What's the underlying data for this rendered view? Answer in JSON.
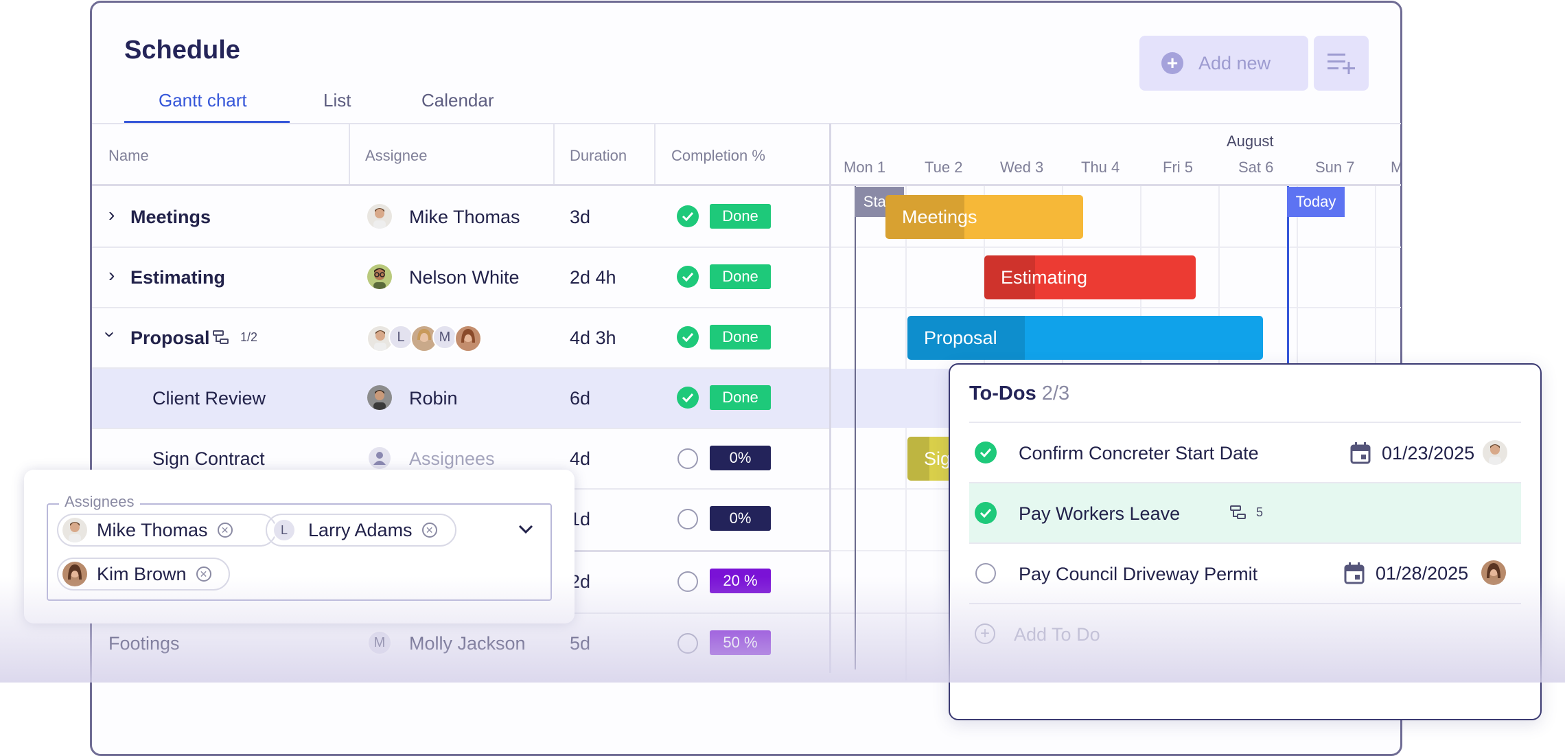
{
  "header": {
    "title": "Schedule",
    "tabs": [
      "Gantt chart",
      "List",
      "Calendar"
    ],
    "active_tab": "Gantt chart",
    "add_new_label": "Add new"
  },
  "table": {
    "columns": [
      "Name",
      "Assignee",
      "Duration",
      "Completion %"
    ],
    "rows": [
      {
        "name": "Meetings",
        "assignee": "Mike Thomas",
        "duration": "3d",
        "status": "Done"
      },
      {
        "name": "Estimating",
        "assignee": "Nelson White",
        "duration": "2d 4h",
        "status": "Done"
      },
      {
        "name": "Proposal",
        "subtasks": "1/2",
        "assignee_initials": [
          "L",
          "M"
        ],
        "duration": "4d 3h",
        "status": "Done"
      },
      {
        "name": "Client Review",
        "assignee": "Robin",
        "duration": "6d",
        "status": "Done"
      },
      {
        "name": "Sign Contract",
        "assignee": "Assignees",
        "duration": "4d",
        "status": "0%"
      },
      {
        "name": "",
        "assignee": "",
        "duration": "1d",
        "status": "0%"
      },
      {
        "name": "",
        "assignee": "",
        "duration": "2d",
        "status": "20 %"
      },
      {
        "name": "Footings",
        "assignee": "Molly Jackson",
        "assignee_initial": "M",
        "duration": "5d",
        "status": "50 %"
      }
    ]
  },
  "gantt": {
    "month": "August",
    "days": [
      "Mon 1",
      "Tue 2",
      "Wed 3",
      "Thu 4",
      "Fri 5",
      "Sat 6",
      "Sun 7",
      "M"
    ],
    "start_label": "Start",
    "today_label": "Today",
    "bars": [
      {
        "label": "Meetings",
        "color": "#f6b838",
        "progress": 0.4
      },
      {
        "label": "Estimating",
        "color": "#ec3b33",
        "progress": 0.24
      },
      {
        "label": "Proposal",
        "color": "#10a2ea",
        "progress": 0.33
      },
      {
        "label": "Sig",
        "color": "#d9cf4a",
        "progress": 0.4
      }
    ]
  },
  "assignees_popup": {
    "legend": "Assignees",
    "chips": [
      {
        "name": "Mike Thomas"
      },
      {
        "name": "Larry Adams",
        "initial": "L"
      },
      {
        "name": "Kim Brown"
      }
    ]
  },
  "todos": {
    "title": "To-Dos",
    "count": "2/3",
    "items": [
      {
        "label": "Confirm Concreter Start Date",
        "done": true,
        "date": "01/23/2025"
      },
      {
        "label": "Pay Workers Leave",
        "done": true,
        "subtasks": "5"
      },
      {
        "label": "Pay Council Driveway Permit",
        "done": false,
        "date": "01/28/2025"
      }
    ],
    "add_label": "Add To Do"
  },
  "colors": {
    "done": "#1ec97a",
    "zero": "#23235a",
    "partial": "#7a12d6",
    "accent": "#3556d9",
    "today": "#5d73f2"
  }
}
